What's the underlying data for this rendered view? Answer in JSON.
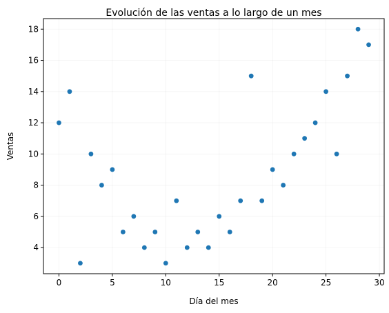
{
  "chart_data": {
    "type": "scatter",
    "title": "Evolución de las ventas a lo largo de un mes",
    "xlabel": "Día del mes",
    "ylabel": "Ventas",
    "x": [
      0,
      1,
      2,
      3,
      4,
      5,
      6,
      7,
      8,
      9,
      10,
      11,
      12,
      13,
      14,
      15,
      16,
      17,
      18,
      19,
      20,
      21,
      22,
      23,
      24,
      25,
      26,
      27,
      28,
      29
    ],
    "y": [
      12,
      14,
      3,
      10,
      8,
      9,
      5,
      6,
      4,
      5,
      3,
      7,
      4,
      5,
      4,
      6,
      5,
      7,
      15,
      7,
      9,
      8,
      10,
      11,
      12,
      14,
      10,
      15,
      18,
      17
    ],
    "xlim": [
      -1.45,
      30.45
    ],
    "ylim": [
      2.325,
      18.675
    ],
    "xticks": [
      0,
      5,
      10,
      15,
      20,
      25,
      30
    ],
    "yticks": [
      4,
      6,
      8,
      10,
      12,
      14,
      16,
      18
    ],
    "grid": true,
    "marker_color": "#1f77b4",
    "grid_color": "#b0b0b0"
  }
}
